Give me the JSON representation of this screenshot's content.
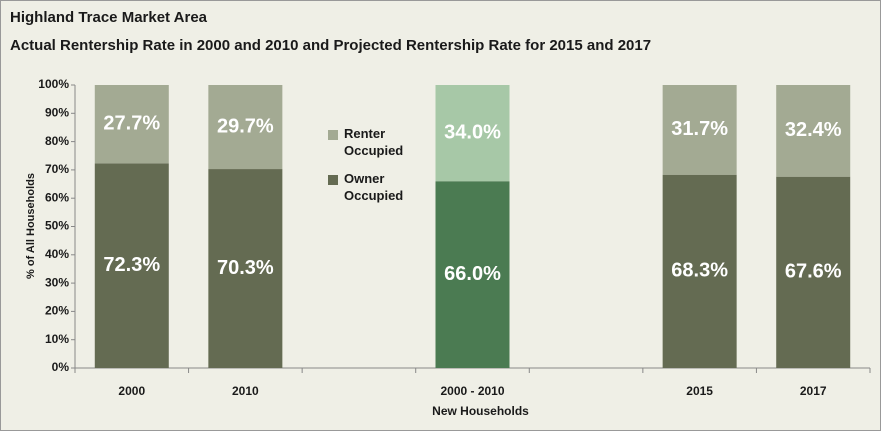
{
  "chart_data": {
    "type": "stacked_bar",
    "title": "Highland Trace Market Area",
    "subtitle": "Actual Rentership Rate in 2000 and 2010 and Projected Rentership Rate for 2015 and 2017",
    "ylabel": "% of All Households",
    "xlabel": "New Households",
    "categories": [
      "2000",
      "2010",
      null,
      "2000 - 2010",
      null,
      "2015",
      "2017"
    ],
    "series": [
      {
        "name": "Owner Occupied",
        "color": "#646b52",
        "colors": [
          "#646b52",
          "#646b52",
          null,
          "#4b7b52",
          null,
          "#646b52",
          "#646b52"
        ],
        "values": [
          72.3,
          70.3,
          null,
          66.0,
          null,
          68.3,
          67.6
        ],
        "value_labels": [
          "72.3%",
          "70.3%",
          null,
          "66.0%",
          null,
          "68.3%",
          "67.6%"
        ]
      },
      {
        "name": "Renter Occupied",
        "color": "#a3aa93",
        "colors": [
          "#a3aa93",
          "#a3aa93",
          null,
          "#a7c8a7",
          null,
          "#a3aa93",
          "#a3aa93"
        ],
        "values": [
          27.7,
          29.7,
          null,
          34.0,
          null,
          31.7,
          32.4
        ],
        "value_labels": [
          "27.7%",
          "29.7%",
          null,
          "34.0%",
          null,
          "31.7%",
          "32.4%"
        ]
      }
    ],
    "ylim": [
      0,
      100
    ],
    "yticks": [
      {
        "value": 0,
        "label": "0%"
      },
      {
        "value": 10,
        "label": "10%"
      },
      {
        "value": 20,
        "label": "20%"
      },
      {
        "value": 30,
        "label": "30%"
      },
      {
        "value": 40,
        "label": "40%"
      },
      {
        "value": 50,
        "label": "50%"
      },
      {
        "value": 60,
        "label": "60%"
      },
      {
        "value": 70,
        "label": "70%"
      },
      {
        "value": 80,
        "label": "80%"
      },
      {
        "value": 90,
        "label": "90%"
      },
      {
        "value": 100,
        "label": "100%"
      }
    ],
    "legend": "upper-left"
  }
}
